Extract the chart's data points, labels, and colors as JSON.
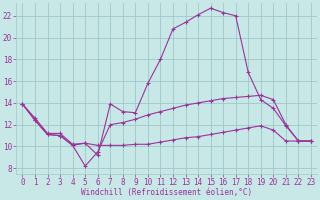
{
  "background_color": "#c8e8e8",
  "grid_color": "#a0c8c8",
  "line_color": "#993399",
  "tick_color": "#993399",
  "xlabel": "Windchill (Refroidissement éolien,°C)",
  "xlim": [
    -0.5,
    23.5
  ],
  "ylim": [
    7.5,
    23.2
  ],
  "ytick_vals": [
    8,
    10,
    12,
    14,
    16,
    18,
    20,
    22
  ],
  "xtick_vals": [
    0,
    1,
    2,
    3,
    4,
    5,
    6,
    7,
    8,
    9,
    10,
    11,
    12,
    13,
    14,
    15,
    16,
    17,
    18,
    19,
    20,
    21,
    22,
    23
  ],
  "line1_x": [
    0,
    1,
    2,
    3,
    4,
    5,
    6,
    7,
    8,
    9,
    10,
    11,
    12,
    13,
    14,
    15,
    16,
    17,
    18,
    19,
    20,
    21,
    22,
    23
  ],
  "line1_y": [
    13.9,
    12.6,
    11.2,
    11.2,
    10.2,
    10.3,
    9.2,
    13.9,
    13.2,
    13.1,
    15.8,
    18.0,
    20.8,
    21.4,
    22.1,
    22.7,
    22.3,
    22.0,
    16.8,
    14.3,
    13.5,
    11.9,
    10.5,
    10.5
  ],
  "line2_x": [
    0,
    1,
    2,
    3,
    4,
    5,
    6,
    7,
    8,
    9,
    10,
    11,
    12,
    13,
    14,
    15,
    16,
    17,
    18,
    19,
    20,
    21,
    22,
    23
  ],
  "line2_y": [
    13.9,
    12.4,
    11.1,
    11.0,
    10.1,
    8.2,
    9.5,
    12.0,
    12.2,
    12.5,
    12.9,
    13.2,
    13.5,
    13.8,
    14.0,
    14.2,
    14.4,
    14.5,
    14.6,
    14.7,
    14.3,
    12.0,
    10.5,
    10.5
  ],
  "line3_x": [
    0,
    1,
    2,
    3,
    4,
    5,
    6,
    7,
    8,
    9,
    10,
    11,
    12,
    13,
    14,
    15,
    16,
    17,
    18,
    19,
    20,
    21,
    22,
    23
  ],
  "line3_y": [
    13.9,
    12.4,
    11.1,
    11.0,
    10.1,
    10.3,
    10.1,
    10.1,
    10.1,
    10.2,
    10.2,
    10.4,
    10.6,
    10.8,
    10.9,
    11.1,
    11.3,
    11.5,
    11.7,
    11.9,
    11.5,
    10.5,
    10.5,
    10.5
  ]
}
